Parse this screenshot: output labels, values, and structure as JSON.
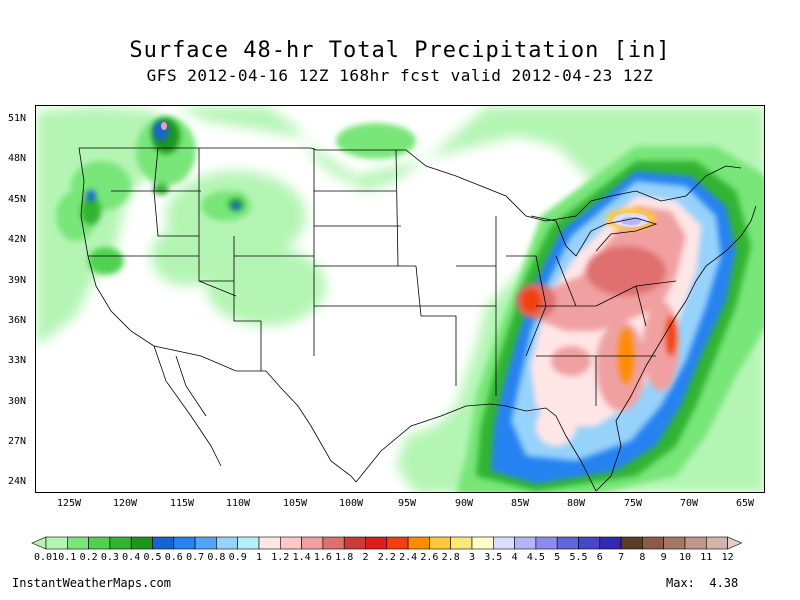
{
  "title": "Surface 48-hr Total Precipitation [in]",
  "subtitle": "GFS 2012-04-16 12Z 168hr fcst valid 2012-04-23 12Z",
  "lat_labels": [
    "51N",
    "48N",
    "45N",
    "42N",
    "39N",
    "36N",
    "33N",
    "30N",
    "27N",
    "24N"
  ],
  "lon_labels": [
    "125W",
    "120W",
    "115W",
    "110W",
    "105W",
    "100W",
    "95W",
    "90W",
    "85W",
    "80W",
    "75W",
    "70W",
    "65W"
  ],
  "scale": {
    "labels": [
      "0.01",
      "0.1",
      "0.2",
      "0.3",
      "0.4",
      "0.5",
      "0.6",
      "0.7",
      "0.8",
      "0.9",
      "1",
      "1.2",
      "1.4",
      "1.6",
      "1.8",
      "2",
      "2.2",
      "2.4",
      "2.6",
      "2.8",
      "3",
      "3.5",
      "4",
      "4.5",
      "5",
      "5.5",
      "6",
      "7",
      "8",
      "9",
      "10",
      "11",
      "12"
    ],
    "colors": [
      "#b4f5b4",
      "#78e678",
      "#50d250",
      "#32b432",
      "#1e961e",
      "#1464d2",
      "#2882f0",
      "#50a5f5",
      "#96d2fa",
      "#b4f0fa",
      "#ffe6e6",
      "#ffc8c8",
      "#f0a0a0",
      "#e07070",
      "#c83c3c",
      "#dc1e1e",
      "#f04010",
      "#ff8c00",
      "#ffc83c",
      "#ffe678",
      "#ffffc8",
      "#dcdcff",
      "#b4b4fa",
      "#8c8cf0",
      "#6464dc",
      "#4646c8",
      "#3228b4",
      "#5a3c28",
      "#8c5a46",
      "#a47864",
      "#be968c",
      "#d2b4aa",
      "#e6cdc8"
    ]
  },
  "footer": {
    "site": "InstantWeatherMaps.com",
    "max_label": "Max:  4.38"
  }
}
